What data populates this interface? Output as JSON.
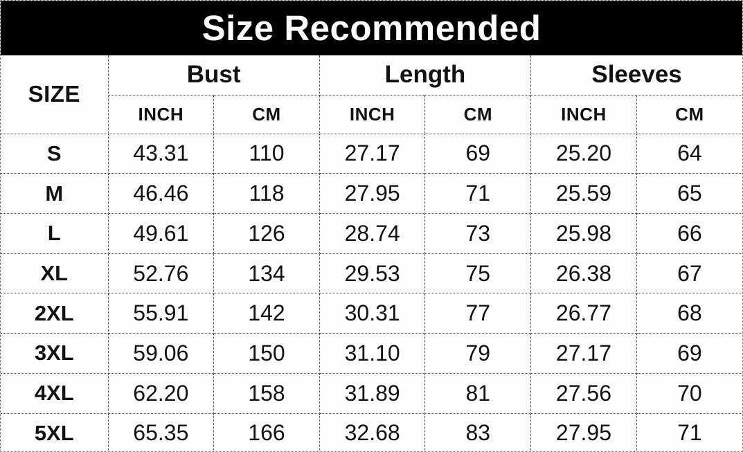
{
  "title": "Size Recommended",
  "table": {
    "size_column_header": "SIZE",
    "group_headers": [
      "Bust",
      "Length",
      "Sleeves"
    ],
    "unit_headers": [
      "INCH",
      "CM",
      "INCH",
      "CM",
      "INCH",
      "CM"
    ],
    "rows": [
      {
        "size": "S",
        "values": [
          "43.31",
          "110",
          "27.17",
          "69",
          "25.20",
          "64"
        ]
      },
      {
        "size": "M",
        "values": [
          "46.46",
          "118",
          "27.95",
          "71",
          "25.59",
          "65"
        ]
      },
      {
        "size": "L",
        "values": [
          "49.61",
          "126",
          "28.74",
          "73",
          "25.98",
          "66"
        ]
      },
      {
        "size": "XL",
        "values": [
          "52.76",
          "134",
          "29.53",
          "75",
          "26.38",
          "67"
        ]
      },
      {
        "size": "2XL",
        "values": [
          "55.91",
          "142",
          "30.31",
          "77",
          "26.77",
          "68"
        ]
      },
      {
        "size": "3XL",
        "values": [
          "59.06",
          "150",
          "31.10",
          "79",
          "27.17",
          "69"
        ]
      },
      {
        "size": "4XL",
        "values": [
          "62.20",
          "158",
          "31.89",
          "81",
          "27.56",
          "70"
        ]
      },
      {
        "size": "5XL",
        "values": [
          "65.35",
          "166",
          "32.68",
          "83",
          "27.95",
          "71"
        ]
      }
    ]
  },
  "colors": {
    "title_background": "#000000",
    "title_text": "#ffffff",
    "body_text": "#121212",
    "border": "#4a4a4a",
    "cell_background": "#fdfdfd"
  },
  "chart_data": {
    "type": "table",
    "title": "Size Recommended",
    "columns": [
      "SIZE",
      "Bust INCH",
      "Bust CM",
      "Length INCH",
      "Length CM",
      "Sleeves INCH",
      "Sleeves CM"
    ],
    "rows": [
      [
        "S",
        43.31,
        110,
        27.17,
        69,
        25.2,
        64
      ],
      [
        "M",
        46.46,
        118,
        27.95,
        71,
        25.59,
        65
      ],
      [
        "L",
        49.61,
        126,
        28.74,
        73,
        25.98,
        66
      ],
      [
        "XL",
        52.76,
        134,
        29.53,
        75,
        26.38,
        67
      ],
      [
        "2XL",
        55.91,
        142,
        30.31,
        77,
        26.77,
        68
      ],
      [
        "3XL",
        59.06,
        150,
        31.1,
        79,
        27.17,
        69
      ],
      [
        "4XL",
        62.2,
        158,
        31.89,
        81,
        27.56,
        70
      ],
      [
        "5XL",
        65.35,
        166,
        32.68,
        83,
        27.95,
        71
      ]
    ]
  }
}
